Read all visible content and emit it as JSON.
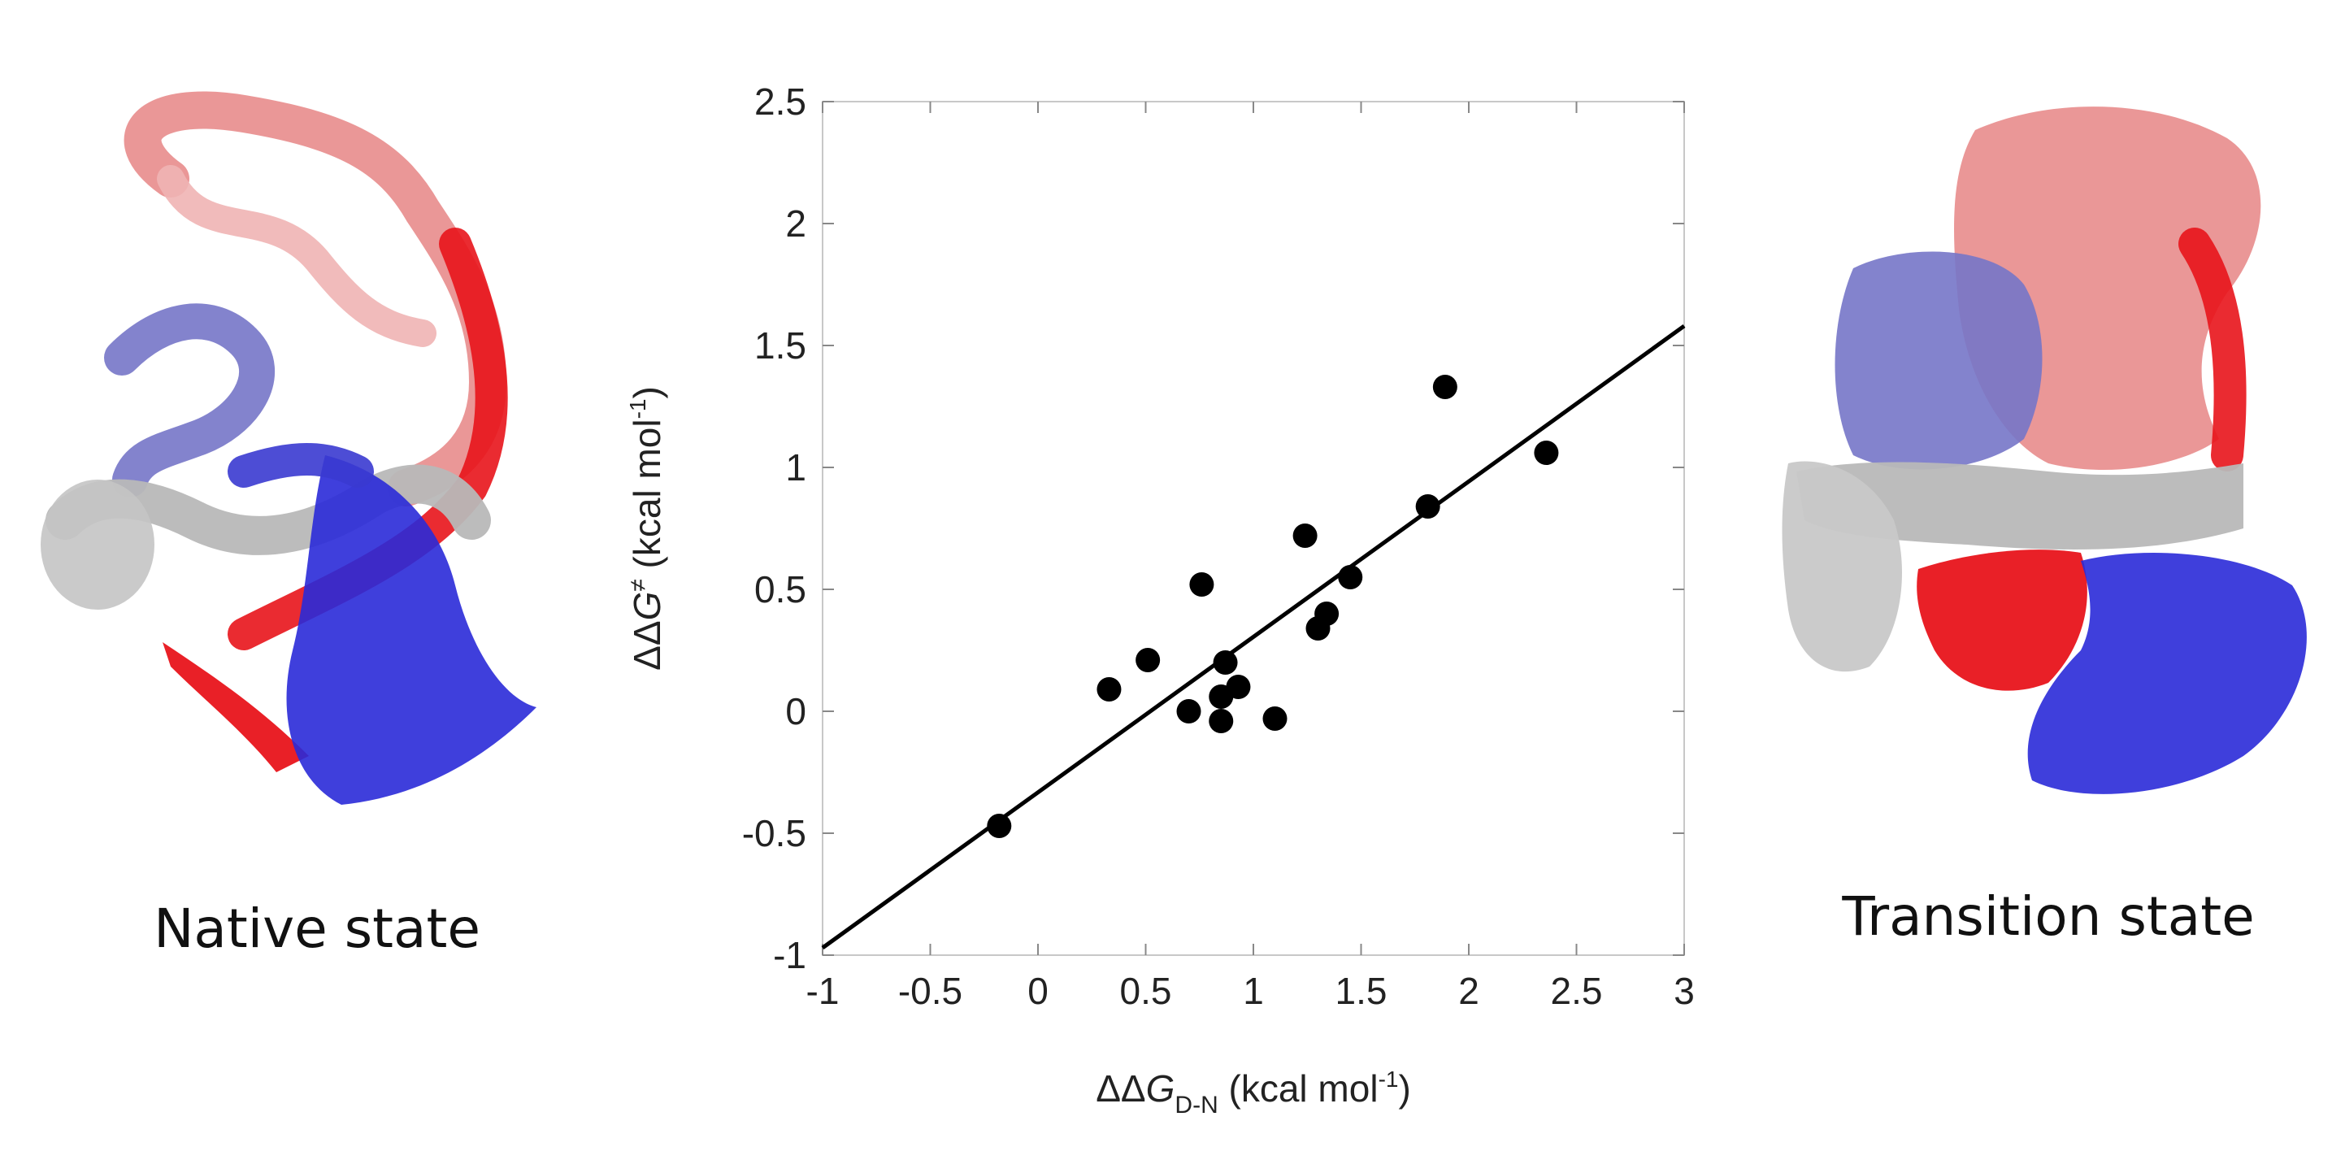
{
  "panels": {
    "left_caption": "Native state",
    "right_caption": "Transition state"
  },
  "colors": {
    "red": "#e8141b",
    "salmon": "#e88c8c",
    "blue": "#2a2ad8",
    "periwinkle": "#7676c8",
    "gray": "#b8b8b8",
    "point": "#000000",
    "fit_line": "#000000"
  },
  "chart_data": {
    "type": "scatter",
    "title": "",
    "xlabel": {
      "prefix": "ΔΔ",
      "symbol": "G",
      "subscript": "D-N",
      "unit_open": " (kcal mol",
      "unit_sup": "-1",
      "unit_close": ")"
    },
    "ylabel": {
      "prefix": "ΔΔ",
      "symbol": "G",
      "superscript": "≠",
      "unit_open": " (kcal mol",
      "unit_sup": "-1",
      "unit_close": ")"
    },
    "xlim": [
      -1,
      3
    ],
    "ylim": [
      -1,
      2.5
    ],
    "xticks": [
      -1,
      -0.5,
      0,
      0.5,
      1,
      1.5,
      2,
      2.5,
      3
    ],
    "xtick_labels": [
      "-1",
      "-0.5",
      "0",
      "0.5",
      "1",
      "1.5",
      "2",
      "2.5",
      "3"
    ],
    "yticks": [
      -1,
      -0.5,
      0,
      0.5,
      1,
      1.5,
      2,
      2.5
    ],
    "ytick_labels": [
      "-1",
      "-0.5",
      "0",
      "0.5",
      "1",
      "1.5",
      "2",
      "2.5"
    ],
    "grid": false,
    "points": [
      {
        "x": -0.18,
        "y": -0.47
      },
      {
        "x": 0.33,
        "y": 0.09
      },
      {
        "x": 0.51,
        "y": 0.21
      },
      {
        "x": 0.7,
        "y": 0.0
      },
      {
        "x": 0.76,
        "y": 0.52
      },
      {
        "x": 0.85,
        "y": 0.06
      },
      {
        "x": 0.85,
        "y": -0.04
      },
      {
        "x": 0.87,
        "y": 0.2
      },
      {
        "x": 0.93,
        "y": 0.1
      },
      {
        "x": 1.1,
        "y": -0.03
      },
      {
        "x": 1.24,
        "y": 0.72
      },
      {
        "x": 1.3,
        "y": 0.34
      },
      {
        "x": 1.34,
        "y": 0.4
      },
      {
        "x": 1.45,
        "y": 0.55
      },
      {
        "x": 1.81,
        "y": 0.84
      },
      {
        "x": 1.89,
        "y": 1.33
      },
      {
        "x": 2.36,
        "y": 1.06
      }
    ],
    "fit_line": {
      "x": [
        -1,
        3
      ],
      "y": [
        -0.97,
        1.58
      ]
    }
  }
}
